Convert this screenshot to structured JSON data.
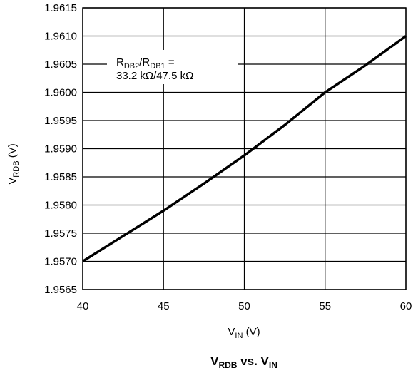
{
  "chart_data": {
    "type": "line",
    "title": "V_RDB vs. V_IN",
    "title_parts": {
      "main": "V",
      "main_sub": "RDB",
      "vs": " vs. V",
      "vs_sub": "IN"
    },
    "xlabel_parts": {
      "main": "V",
      "sub": "IN",
      "unit": " (V)"
    },
    "ylabel_parts": {
      "main": "V",
      "sub": "RDB",
      "unit": " (V)"
    },
    "xlim": [
      40,
      60
    ],
    "ylim": [
      1.9565,
      1.9615
    ],
    "x_ticks": [
      "40",
      "45",
      "50",
      "55",
      "60"
    ],
    "y_ticks": [
      "1.9565",
      "1.9570",
      "1.9575",
      "1.9580",
      "1.9585",
      "1.9590",
      "1.9595",
      "1.9600",
      "1.9605",
      "1.9610",
      "1.9615"
    ],
    "grid": true,
    "annotation": {
      "line1_parts": {
        "r1": "R",
        "r1_sub": "DB2",
        "slash": "/R",
        "r2_sub": "DB1",
        "eq": " ="
      },
      "line2": "33.2 kΩ/47.5 kΩ"
    },
    "series": [
      {
        "x": [
          40,
          42.5,
          45,
          47.5,
          50,
          52.5,
          55,
          57.5,
          60
        ],
        "values": [
          1.957,
          1.95745,
          1.9579,
          1.95838,
          1.95888,
          1.95942,
          1.96,
          1.96048,
          1.961
        ],
        "color": "#000000"
      }
    ]
  }
}
